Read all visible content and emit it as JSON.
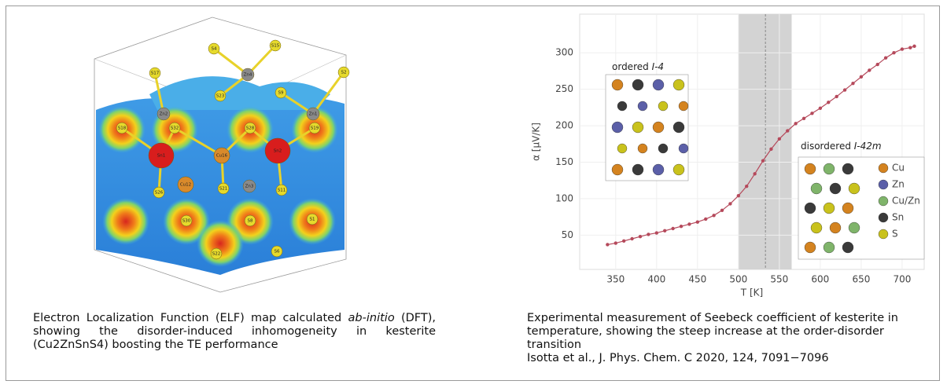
{
  "left_panel": {
    "atom_labels": [
      "S4",
      "S15",
      "Zn4",
      "S17",
      "S23",
      "S9",
      "S2",
      "Zn2",
      "Zn1",
      "S18",
      "S32",
      "S28",
      "S19",
      "Sn1",
      "Cu16",
      "Sn2",
      "S26",
      "Cu12",
      "S21",
      "Zn3",
      "S11",
      "S30",
      "S8",
      "S1",
      "S22",
      "S6"
    ],
    "caption": [
      "Electron Localization Function (ELF) map calculated ",
      "ab-initio",
      " (DFT), showing the disorder-induced inhomogeneity in kesterite (Cu2ZnSnS4) boosting the TE performance"
    ]
  },
  "chart_data": {
    "type": "line",
    "x": [
      340,
      350,
      360,
      370,
      380,
      390,
      400,
      410,
      420,
      430,
      440,
      450,
      460,
      470,
      480,
      490,
      500,
      510,
      520,
      530,
      540,
      550,
      560,
      570,
      580,
      590,
      600,
      610,
      620,
      630,
      640,
      650,
      660,
      670,
      680,
      690,
      700,
      710,
      715
    ],
    "values": [
      37,
      39,
      42,
      45,
      48,
      51,
      53,
      56,
      59,
      62,
      65,
      68,
      72,
      77,
      84,
      93,
      104,
      117,
      134,
      152,
      168,
      182,
      193,
      203,
      210,
      217,
      224,
      232,
      240,
      249,
      258,
      267,
      276,
      284,
      293,
      300,
      305,
      307,
      309
    ],
    "color": "#b5495b",
    "xlabel": "T [K]",
    "ylabel": "α [μV/K]",
    "xlim": [
      306,
      727
    ],
    "ylim": [
      3,
      353
    ],
    "xticks": [
      350,
      400,
      450,
      500,
      550,
      600,
      650,
      700
    ],
    "yticks": [
      50,
      100,
      150,
      200,
      250,
      300
    ],
    "grid": true,
    "shaded_region": [
      500,
      565
    ],
    "transition_line": 533,
    "inset_titles": [
      [
        "ordered ",
        "I-4"
      ],
      [
        "disordered ",
        "I-42m"
      ]
    ],
    "inset_legend": [
      {
        "name": "Cu",
        "color": "#d4831f"
      },
      {
        "name": "Zn",
        "color": "#5b5fa8"
      },
      {
        "name": "Cu/Zn",
        "color": "#7fb46a"
      },
      {
        "name": "Sn",
        "color": "#3a3a3a"
      },
      {
        "name": "S",
        "color": "#c9c21c"
      }
    ]
  },
  "right_caption": [
    "Experimental measurement of Seebeck coefficient of kesterite in temperature, showing the steep increase at the order-disorder transition",
    "Isotta et al., J. Phys. Chem. C 2020, 124, 7091−7096"
  ]
}
